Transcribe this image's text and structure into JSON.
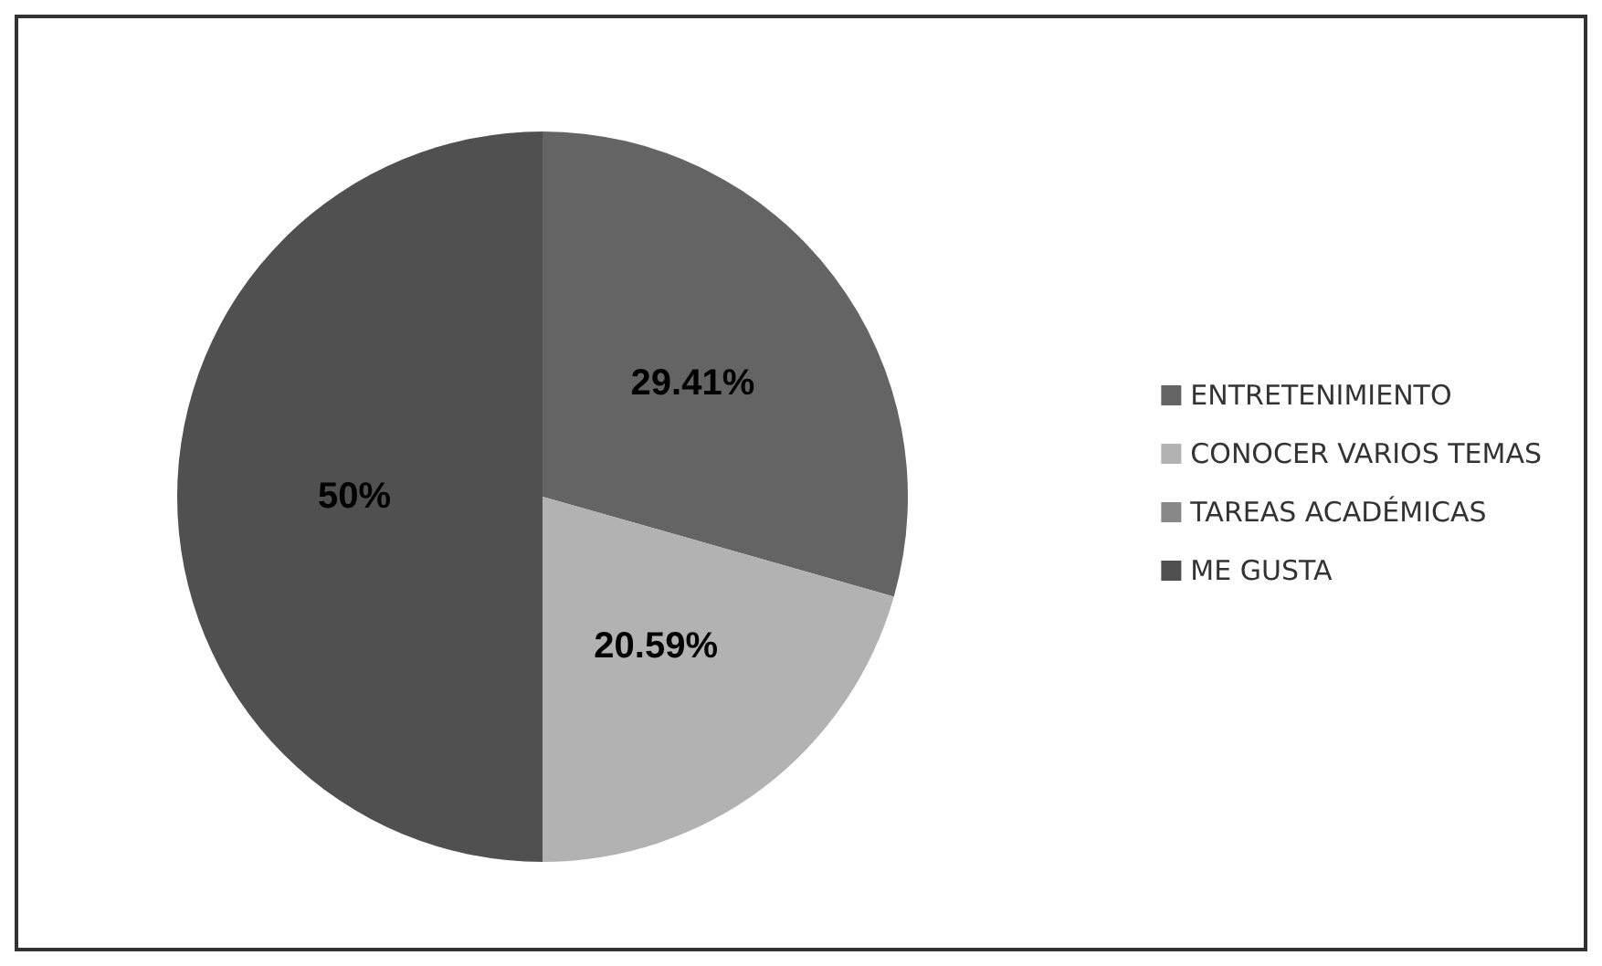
{
  "chart_data": {
    "type": "pie",
    "categories": [
      "ENTRETENIMIENTO",
      "CONOCER VARIOS TEMAS",
      "TAREAS ACADÉMICAS",
      "ME GUSTA"
    ],
    "values": [
      29.41,
      20.59,
      0,
      50
    ],
    "colors": [
      "#646464",
      "#b2b2b2",
      "#888888",
      "#505050"
    ],
    "value_labels": [
      "29.41%",
      "20.59%",
      null,
      "50%"
    ],
    "legend": "right"
  }
}
